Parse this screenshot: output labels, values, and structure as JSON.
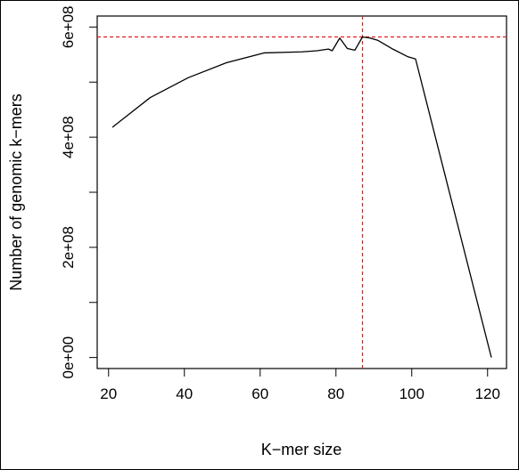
{
  "chart_data": {
    "type": "line",
    "xlabel": "K−mer size",
    "ylabel": "Number of genomic k−mers",
    "xlim": [
      17,
      125
    ],
    "ylim": [
      -20000000,
      620000000
    ],
    "x_ticks": [
      20,
      40,
      60,
      80,
      100,
      120
    ],
    "x_tick_labels": [
      "20",
      "40",
      "60",
      "80",
      "100",
      "120"
    ],
    "y_ticks": [
      0,
      100000000,
      200000000,
      300000000,
      400000000,
      500000000,
      600000000
    ],
    "y_tick_labels": [
      "0e+00",
      "",
      "2e+08",
      "",
      "4e+08",
      "",
      "6e+08"
    ],
    "series": [
      {
        "x": [
          21,
          31,
          41,
          51,
          61,
          71,
          75,
          78,
          79,
          81,
          83,
          85,
          87,
          89,
          91,
          95,
          99,
          101,
          121
        ],
        "y": [
          418000000,
          472000000,
          508000000,
          535000000,
          553000000,
          555000000,
          557000000,
          560000000,
          557000000,
          580000000,
          561000000,
          558000000,
          582000000,
          580000000,
          576000000,
          560000000,
          546000000,
          542000000,
          0
        ]
      }
    ],
    "reference_lines": {
      "horizontal_y": 582000000,
      "vertical_x": 87,
      "color": "#e41a1c",
      "style": "dashed"
    },
    "line_color": "#000000",
    "grid": false,
    "legend": "none"
  }
}
